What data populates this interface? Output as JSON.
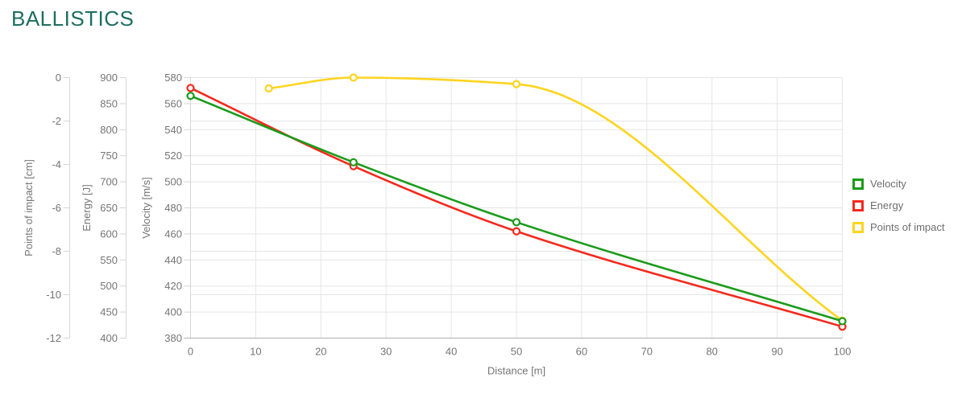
{
  "page": {
    "title": "BALLISTICS",
    "title_color": "#1e6e60"
  },
  "chart_data": {
    "type": "line",
    "title": "BALLISTICS",
    "xlabel": "Distance [m]",
    "xlim": [
      0,
      100
    ],
    "x_ticks": [
      "0",
      "10",
      "20",
      "30",
      "40",
      "50",
      "60",
      "70",
      "80",
      "90",
      "100"
    ],
    "grid": true,
    "legend_position": "right",
    "legend": [
      "Velocity",
      "Energy",
      "Points of impact"
    ],
    "y_axes": [
      {
        "id": "poi",
        "label": "Points of impact [cm]",
        "max": 0,
        "min": -12,
        "ticks": [
          "0",
          "-2",
          "-4",
          "-6",
          "-8",
          "-10",
          "-12"
        ]
      },
      {
        "id": "energy",
        "label": "Energy [J]",
        "max": 900,
        "min": 400,
        "ticks": [
          "900",
          "850",
          "800",
          "750",
          "700",
          "650",
          "600",
          "550",
          "500",
          "450",
          "400"
        ]
      },
      {
        "id": "velocity",
        "label": "Velocity [m/s]",
        "max": 580,
        "min": 380,
        "ticks": [
          "580",
          "560",
          "540",
          "520",
          "500",
          "480",
          "460",
          "440",
          "420",
          "400",
          "380"
        ]
      }
    ],
    "series": [
      {
        "name": "Velocity",
        "axis": "velocity",
        "color": "#1a9b1a",
        "x": [
          0,
          25,
          50,
          100
        ],
        "y": [
          566,
          515,
          469,
          393
        ]
      },
      {
        "name": "Energy",
        "axis": "energy",
        "color": "#f32a1d",
        "x": [
          0,
          25,
          50,
          100
        ],
        "y": [
          880,
          730,
          605,
          422
        ]
      },
      {
        "name": "Points of impact",
        "axis": "poi",
        "color": "#ffd41f",
        "x": [
          12,
          25,
          50,
          100
        ],
        "y": [
          -0.5,
          0,
          -0.3,
          -11.2
        ]
      }
    ],
    "colors": {
      "gridline": "#e5e5e5",
      "axis_border": "#d6d6d6",
      "x_axis_line": "#b0b0b0",
      "tick_text": "#757575"
    }
  }
}
